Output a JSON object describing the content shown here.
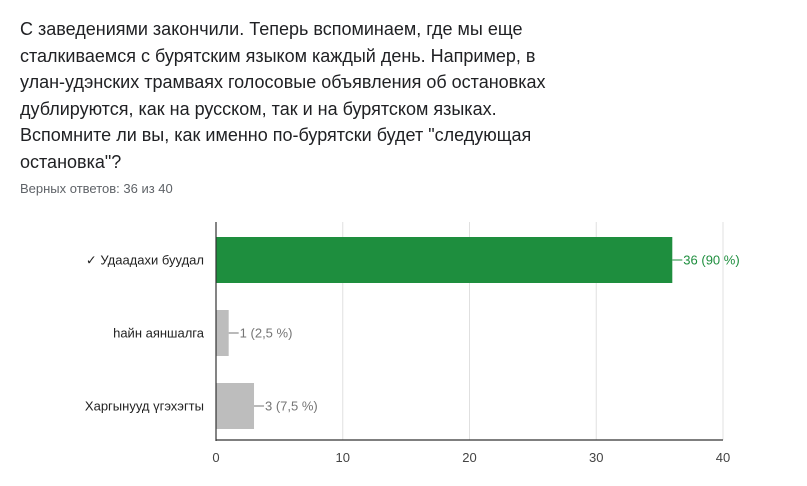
{
  "question": {
    "lines": [
      "С заведениями закончили. Теперь вспоминаем, где мы еще",
      "сталкиваемся с бурятским языком каждый день. Например, в",
      "улан-удэнских трамваях голосовые объявления об остановках",
      "дублируются, как на русском, так и на бурятском языках.",
      "Вспомните ли вы, как именно по-бурятски будет \"следующая",
      "остановка\"?"
    ]
  },
  "score_text": "Верных ответов: 36 из 40",
  "colors": {
    "correct": "#1e8e3e",
    "other": "#bdbdbd",
    "label_other": "#757575",
    "axis": "#333333",
    "grid": "#e0e0e0"
  },
  "chart_data": {
    "type": "bar",
    "orientation": "horizontal",
    "categories": [
      "✓ Удаадахи буудал",
      "һайн аяншалга",
      "Харгынууд үгэхэгты"
    ],
    "values": [
      36,
      1,
      3
    ],
    "data_labels": [
      "36 (90 %)",
      "1 (2,5 %)",
      "3 (7,5 %)"
    ],
    "correct": [
      true,
      false,
      false
    ],
    "xlim": [
      0,
      40
    ],
    "xticks": [
      0,
      10,
      20,
      30,
      40
    ],
    "grid": true,
    "title": "",
    "xlabel": "",
    "ylabel": ""
  }
}
